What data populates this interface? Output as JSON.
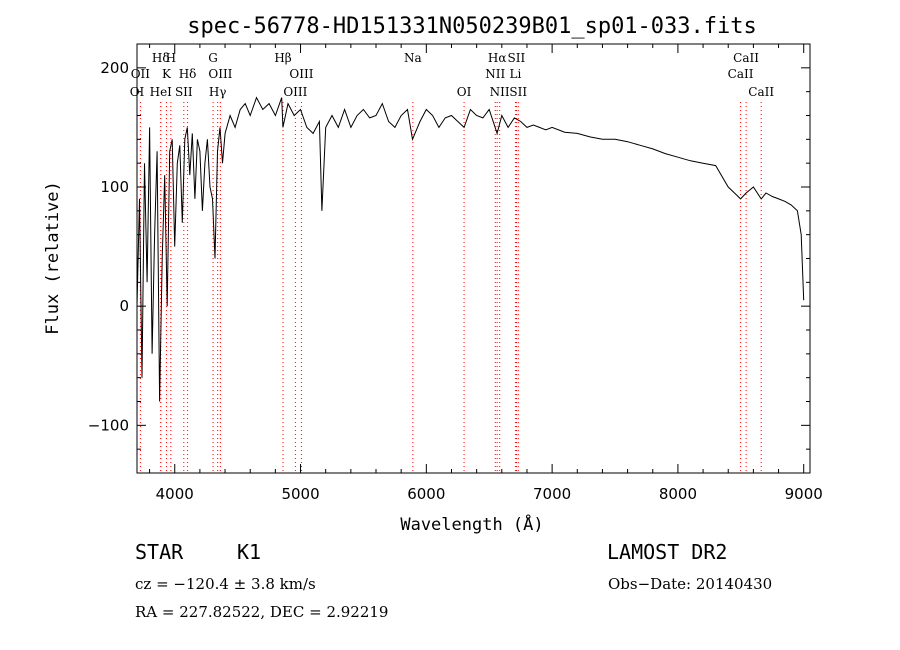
{
  "chart_data": {
    "type": "line",
    "title": "spec-56778-HD151331N050239B01_sp01-033.fits",
    "xlabel": "Wavelength (Å)",
    "ylabel": "Flux (relative)",
    "xlim": [
      3700,
      9050
    ],
    "ylim": [
      -140,
      220
    ],
    "xticks": [
      4000,
      5000,
      6000,
      7000,
      8000,
      9000
    ],
    "yticks": [
      -100,
      0,
      100,
      200
    ],
    "grid": false,
    "series": [
      {
        "x": [
          3700,
          3720,
          3740,
          3760,
          3780,
          3800,
          3820,
          3840,
          3860,
          3880,
          3900,
          3920,
          3940,
          3960,
          3980,
          4000,
          4020,
          4040,
          4060,
          4080,
          4100,
          4120,
          4140,
          4160,
          4180,
          4200,
          4220,
          4240,
          4260,
          4280,
          4300,
          4320,
          4340,
          4360,
          4380,
          4400,
          4440,
          4480,
          4520,
          4560,
          4600,
          4650,
          4700,
          4750,
          4800,
          4850,
          4860,
          4900,
          4950,
          5000,
          5050,
          5100,
          5150,
          5170,
          5200,
          5250,
          5300,
          5350,
          5400,
          5450,
          5500,
          5550,
          5600,
          5650,
          5700,
          5750,
          5800,
          5850,
          5890,
          5950,
          6000,
          6050,
          6100,
          6150,
          6200,
          6250,
          6300,
          6350,
          6400,
          6450,
          6500,
          6563,
          6600,
          6650,
          6700,
          6750,
          6800,
          6850,
          6900,
          6950,
          7000,
          7100,
          7200,
          7300,
          7400,
          7500,
          7600,
          7700,
          7800,
          7900,
          8000,
          8100,
          8200,
          8300,
          8400,
          8450,
          8498,
          8542,
          8600,
          8662,
          8700,
          8750,
          8800,
          8850,
          8900,
          8950,
          8980,
          9000
        ],
        "y": [
          0,
          90,
          -60,
          120,
          20,
          150,
          -40,
          60,
          130,
          -80,
          40,
          110,
          0,
          130,
          140,
          50,
          120,
          135,
          70,
          140,
          150,
          110,
          145,
          90,
          140,
          130,
          80,
          120,
          140,
          100,
          90,
          40,
          130,
          150,
          120,
          145,
          160,
          150,
          165,
          170,
          160,
          175,
          165,
          170,
          160,
          175,
          150,
          170,
          160,
          165,
          150,
          145,
          155,
          80,
          150,
          160,
          150,
          165,
          150,
          160,
          165,
          158,
          160,
          170,
          155,
          150,
          160,
          165,
          140,
          155,
          165,
          160,
          150,
          158,
          160,
          155,
          150,
          165,
          160,
          158,
          165,
          145,
          160,
          150,
          158,
          155,
          150,
          152,
          150,
          148,
          150,
          146,
          145,
          142,
          140,
          140,
          138,
          135,
          132,
          128,
          125,
          122,
          120,
          118,
          100,
          95,
          90,
          95,
          100,
          90,
          95,
          92,
          90,
          88,
          85,
          80,
          60,
          5
        ]
      }
    ],
    "lines": [
      {
        "label": "Hδ",
        "x": 3889,
        "row": 1
      },
      {
        "label": "OII",
        "x": 3727,
        "row": 2
      },
      {
        "label": "OI",
        "x": 3700,
        "row": 3
      },
      {
        "label": "H",
        "x": 3969,
        "row": 1
      },
      {
        "label": "K",
        "x": 3934,
        "row": 2
      },
      {
        "label": "HeI",
        "x": 3889,
        "row": 3
      },
      {
        "label": "Hδ",
        "x": 4102,
        "row": 2
      },
      {
        "label": "SII",
        "x": 4072,
        "row": 3
      },
      {
        "label": "G",
        "x": 4305,
        "row": 1
      },
      {
        "label": "OIII",
        "x": 4363,
        "row": 2
      },
      {
        "label": "Hγ",
        "x": 4341,
        "row": 3
      },
      {
        "label": "Hβ",
        "x": 4861,
        "row": 1
      },
      {
        "label": "OIII",
        "x": 5007,
        "row": 2
      },
      {
        "label": "OIII",
        "x": 4959,
        "row": 3
      },
      {
        "label": "Na",
        "x": 5893,
        "row": 1
      },
      {
        "label": "OI",
        "x": 6300,
        "row": 3
      },
      {
        "label": "Hα",
        "x": 6563,
        "row": 1
      },
      {
        "label": "NII",
        "x": 6548,
        "row": 2
      },
      {
        "label": "NII",
        "x": 6583,
        "row": 3
      },
      {
        "label": "SII",
        "x": 6716,
        "row": 1
      },
      {
        "label": "Li",
        "x": 6708,
        "row": 2
      },
      {
        "label": "SII",
        "x": 6731,
        "row": 3
      },
      {
        "label": "CaII",
        "x": 8542,
        "row": 1
      },
      {
        "label": "CaII",
        "x": 8498,
        "row": 2
      },
      {
        "label": "CaII",
        "x": 8662,
        "row": 3
      }
    ],
    "colors": {
      "spectrum": "#000000",
      "line_markers": "#ff0000"
    }
  },
  "info": {
    "obj_class": "STAR",
    "obj_subclass": "K1",
    "survey": "LAMOST DR2",
    "cz": "cz = −120.4 ± 3.8 km/s",
    "obs_date": "Obs−Date: 20140430",
    "radec": "RA = 227.82522, DEC =   2.92219"
  }
}
